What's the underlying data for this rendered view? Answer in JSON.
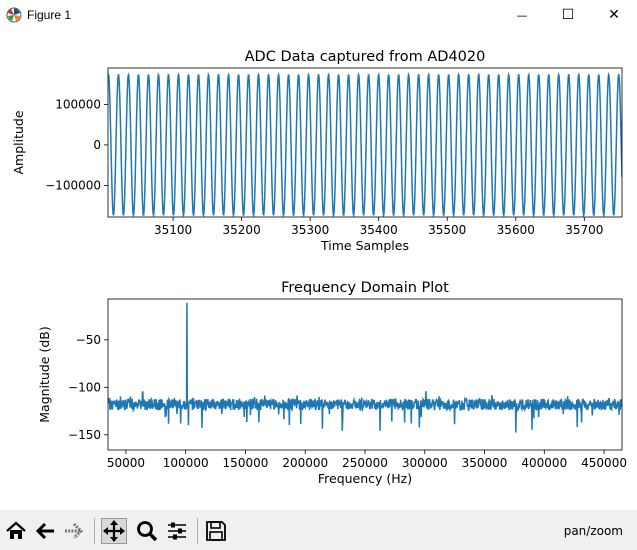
{
  "window": {
    "title": "Figure 1",
    "minimize_glyph": "—",
    "maximize_glyph": "☐",
    "close_glyph": "✕"
  },
  "chart_data": [
    {
      "type": "line",
      "title": "ADC Data captured from AD4020",
      "xlabel": "Time Samples",
      "ylabel": "Amplitude",
      "xlim": [
        35005,
        35755
      ],
      "ylim": [
        -178000,
        190000
      ],
      "xticks": [
        35100,
        35200,
        35300,
        35400,
        35500,
        35600,
        35700
      ],
      "yticks": [
        100000,
        0,
        -100000
      ],
      "xtick_labels": [
        "35100",
        "35200",
        "35300",
        "35400",
        "35500",
        "35600",
        "35700"
      ],
      "ytick_labels": [
        "100000",
        "0",
        "−100000"
      ],
      "series": [
        {
          "amplitude": 174000,
          "period_samples": 14.6,
          "color": "#1f77b4"
        }
      ],
      "grid": false
    },
    {
      "type": "line",
      "title": "Frequency Domain Plot",
      "xlabel": "Frequency (Hz)",
      "ylabel": "Magnitude (dB)",
      "xlim": [
        35000,
        465000
      ],
      "ylim": [
        -166,
        -7
      ],
      "xticks": [
        50000,
        100000,
        150000,
        200000,
        250000,
        300000,
        350000,
        400000,
        450000
      ],
      "yticks": [
        -50,
        -100,
        -150
      ],
      "xtick_labels": [
        "50000",
        "100000",
        "150000",
        "200000",
        "250000",
        "300000",
        "350000",
        "400000",
        "450000"
      ],
      "ytick_labels": [
        "−50",
        "−100",
        "−150"
      ],
      "series": [
        {
          "noise_floor_db": -118,
          "peaks": [
            {
              "x": 101000,
              "y": -11
            },
            {
              "x": 301000,
              "y": -104
            },
            {
              "x": 64000,
              "y": -105
            }
          ],
          "color": "#1f77b4"
        }
      ],
      "grid": false
    }
  ],
  "toolbar": {
    "buttons": [
      "home-icon",
      "back-arrow-icon",
      "forward-arrow-icon",
      "pan-icon",
      "zoom-icon",
      "configure-subplots-icon",
      "save-icon"
    ],
    "status": "pan/zoom"
  }
}
